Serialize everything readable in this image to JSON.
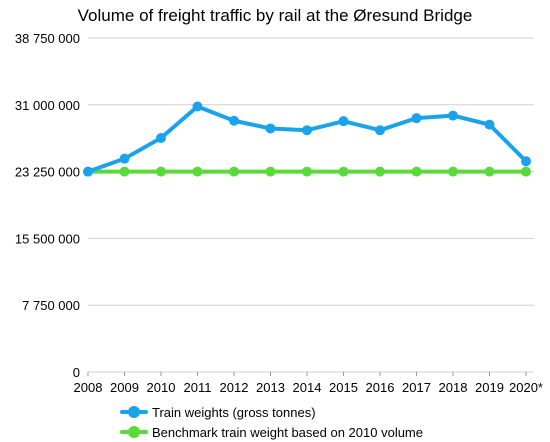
{
  "chart_data": {
    "type": "line",
    "title": "Volume of freight traffic by rail at the Øresund Bridge",
    "xlabel": "",
    "ylabel": "",
    "categories": [
      "2008",
      "2009",
      "2010",
      "2011",
      "2012",
      "2013",
      "2014",
      "2015",
      "2016",
      "2017",
      "2018",
      "2019",
      "2020*"
    ],
    "ylim": [
      0,
      38750000
    ],
    "yticks": [
      0,
      7750000,
      15500000,
      23250000,
      31000000,
      38750000
    ],
    "ytick_labels": [
      "0",
      "7 750 000",
      "15 500 000",
      "23 250 000",
      "31 000 000",
      "38 750 000"
    ],
    "grid": true,
    "legend_position": "bottom",
    "series": [
      {
        "name": "Train weights (gross tonnes)",
        "color": "#1aa3ec",
        "values": [
          23250000,
          24750000,
          27150000,
          30800000,
          29150000,
          28250000,
          28050000,
          29100000,
          28050000,
          29450000,
          29750000,
          28700000,
          24450000
        ]
      },
      {
        "name": "Benchmark train weight based on 2010 volume",
        "color": "#5ad93a",
        "values": [
          23250000,
          23250000,
          23250000,
          23250000,
          23250000,
          23250000,
          23250000,
          23250000,
          23250000,
          23250000,
          23250000,
          23250000,
          23250000
        ]
      }
    ]
  }
}
